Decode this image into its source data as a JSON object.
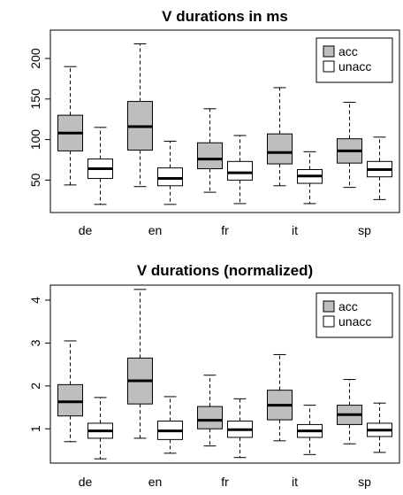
{
  "chart_data": [
    {
      "type": "boxplot",
      "title": "V durations in ms",
      "xlabel": "",
      "ylabel": "",
      "categories": [
        "de",
        "en",
        "fr",
        "it",
        "sp"
      ],
      "ylim": [
        10,
        235
      ],
      "yticks": [
        50,
        100,
        150,
        200
      ],
      "grid": false,
      "legend_position": "top-right",
      "colors": {
        "acc": "#bebebe",
        "unacc": "#ffffff"
      },
      "series": [
        {
          "name": "acc",
          "boxes": [
            {
              "whisker_low": 44,
              "q1": 86,
              "median": 108,
              "q3": 130,
              "whisker_high": 190
            },
            {
              "whisker_low": 42,
              "q1": 87,
              "median": 116,
              "q3": 147,
              "whisker_high": 218
            },
            {
              "whisker_low": 35,
              "q1": 64,
              "median": 76,
              "q3": 96,
              "whisker_high": 138
            },
            {
              "whisker_low": 43,
              "q1": 70,
              "median": 84,
              "q3": 107,
              "whisker_high": 164
            },
            {
              "whisker_low": 41,
              "q1": 71,
              "median": 86,
              "q3": 101,
              "whisker_high": 146
            }
          ]
        },
        {
          "name": "unacc",
          "boxes": [
            {
              "whisker_low": 20,
              "q1": 52,
              "median": 64,
              "q3": 76,
              "whisker_high": 115
            },
            {
              "whisker_low": 20,
              "q1": 43,
              "median": 52,
              "q3": 65,
              "whisker_high": 98
            },
            {
              "whisker_low": 21,
              "q1": 50,
              "median": 59,
              "q3": 73,
              "whisker_high": 105
            },
            {
              "whisker_low": 21,
              "q1": 46,
              "median": 55,
              "q3": 63,
              "whisker_high": 85
            },
            {
              "whisker_low": 26,
              "q1": 54,
              "median": 63,
              "q3": 73,
              "whisker_high": 103
            }
          ]
        }
      ]
    },
    {
      "type": "boxplot",
      "title": "V durations (normalized)",
      "xlabel": "",
      "ylabel": "",
      "categories": [
        "de",
        "en",
        "fr",
        "it",
        "sp"
      ],
      "ylim": [
        0.2,
        4.35
      ],
      "yticks": [
        1,
        2,
        3,
        4
      ],
      "grid": false,
      "legend_position": "top-right",
      "colors": {
        "acc": "#bebebe",
        "unacc": "#ffffff"
      },
      "series": [
        {
          "name": "acc",
          "boxes": [
            {
              "whisker_low": 0.7,
              "q1": 1.3,
              "median": 1.63,
              "q3": 2.03,
              "whisker_high": 3.05
            },
            {
              "whisker_low": 0.78,
              "q1": 1.58,
              "median": 2.12,
              "q3": 2.65,
              "whisker_high": 4.25
            },
            {
              "whisker_low": 0.6,
              "q1": 1.0,
              "median": 1.2,
              "q3": 1.52,
              "whisker_high": 2.25
            },
            {
              "whisker_low": 0.72,
              "q1": 1.21,
              "median": 1.55,
              "q3": 1.9,
              "whisker_high": 2.73
            },
            {
              "whisker_low": 0.65,
              "q1": 1.1,
              "median": 1.33,
              "q3": 1.55,
              "whisker_high": 2.15
            }
          ]
        },
        {
          "name": "unacc",
          "boxes": [
            {
              "whisker_low": 0.3,
              "q1": 0.78,
              "median": 0.95,
              "q3": 1.13,
              "whisker_high": 1.73
            },
            {
              "whisker_low": 0.43,
              "q1": 0.75,
              "median": 0.95,
              "q3": 1.18,
              "whisker_high": 1.75
            },
            {
              "whisker_low": 0.33,
              "q1": 0.8,
              "median": 0.98,
              "q3": 1.18,
              "whisker_high": 1.7
            },
            {
              "whisker_low": 0.4,
              "q1": 0.8,
              "median": 0.95,
              "q3": 1.1,
              "whisker_high": 1.55
            },
            {
              "whisker_low": 0.45,
              "q1": 0.82,
              "median": 0.97,
              "q3": 1.13,
              "whisker_high": 1.6
            }
          ]
        }
      ]
    }
  ]
}
